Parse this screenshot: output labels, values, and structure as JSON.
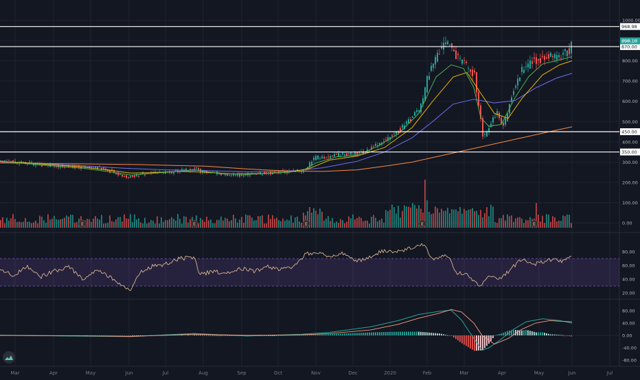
{
  "chart_data": {
    "type": "candlestick",
    "months": [
      "Mar",
      "Apr",
      "May",
      "Jun",
      "Jul",
      "Aug",
      "Sep",
      "Oct",
      "Nov",
      "Dec",
      "2020",
      "Feb",
      "Mar",
      "Apr",
      "May",
      "Jun",
      "Jul"
    ],
    "main_y_ticks": [
      1000,
      900,
      800,
      700,
      600,
      500,
      400,
      300,
      200,
      100,
      0
    ],
    "price_close_series": [
      [
        0,
        308
      ],
      [
        15,
        302
      ],
      [
        30,
        296
      ],
      [
        45,
        290
      ],
      [
        60,
        286
      ],
      [
        75,
        283
      ],
      [
        90,
        281
      ],
      [
        105,
        278
      ],
      [
        120,
        276
      ],
      [
        135,
        274
      ],
      [
        145,
        268
      ],
      [
        155,
        260
      ],
      [
        165,
        250
      ],
      [
        175,
        238
      ],
      [
        185,
        223
      ],
      [
        195,
        232
      ],
      [
        205,
        242
      ],
      [
        215,
        245
      ],
      [
        230,
        248
      ],
      [
        245,
        250
      ],
      [
        260,
        256
      ],
      [
        275,
        263
      ],
      [
        283,
        272
      ],
      [
        290,
        256
      ],
      [
        300,
        250
      ],
      [
        315,
        246
      ],
      [
        330,
        240
      ],
      [
        345,
        235
      ],
      [
        360,
        238
      ],
      [
        375,
        242
      ],
      [
        390,
        246
      ],
      [
        405,
        252
      ],
      [
        420,
        254
      ],
      [
        435,
        256
      ],
      [
        443,
        262
      ],
      [
        450,
        292
      ],
      [
        458,
        322
      ],
      [
        470,
        326
      ],
      [
        485,
        330
      ],
      [
        495,
        338
      ],
      [
        505,
        336
      ],
      [
        520,
        340
      ],
      [
        530,
        352
      ],
      [
        540,
        372
      ],
      [
        550,
        392
      ],
      [
        560,
        408
      ],
      [
        570,
        432
      ],
      [
        580,
        458
      ],
      [
        590,
        492
      ],
      [
        600,
        522
      ],
      [
        610,
        562
      ],
      [
        617,
        632
      ],
      [
        622,
        730
      ],
      [
        628,
        770
      ],
      [
        635,
        820
      ],
      [
        642,
        868
      ],
      [
        650,
        890
      ],
      [
        657,
        858
      ],
      [
        664,
        820
      ],
      [
        670,
        796
      ],
      [
        677,
        778
      ],
      [
        684,
        752
      ],
      [
        690,
        732
      ],
      [
        697,
        560
      ],
      [
        703,
        410
      ],
      [
        710,
        470
      ],
      [
        717,
        520
      ],
      [
        724,
        552
      ],
      [
        731,
        462
      ],
      [
        738,
        536
      ],
      [
        745,
        650
      ],
      [
        752,
        708
      ],
      [
        760,
        760
      ],
      [
        768,
        780
      ],
      [
        775,
        806
      ],
      [
        782,
        798
      ],
      [
        790,
        818
      ],
      [
        798,
        828
      ],
      [
        806,
        824
      ],
      [
        814,
        828
      ],
      [
        822,
        836
      ],
      [
        828,
        850
      ],
      [
        833,
        898
      ]
    ],
    "ma_fast_series": [
      [
        0,
        306
      ],
      [
        40,
        292
      ],
      [
        80,
        280
      ],
      [
        120,
        270
      ],
      [
        160,
        252
      ],
      [
        190,
        236
      ],
      [
        220,
        244
      ],
      [
        260,
        254
      ],
      [
        283,
        262
      ],
      [
        320,
        244
      ],
      [
        360,
        240
      ],
      [
        400,
        246
      ],
      [
        440,
        256
      ],
      [
        460,
        296
      ],
      [
        490,
        326
      ],
      [
        520,
        334
      ],
      [
        550,
        378
      ],
      [
        580,
        440
      ],
      [
        610,
        540
      ],
      [
        635,
        720
      ],
      [
        657,
        780
      ],
      [
        675,
        762
      ],
      [
        690,
        668
      ],
      [
        700,
        520
      ],
      [
        712,
        476
      ],
      [
        730,
        486
      ],
      [
        750,
        618
      ],
      [
        770,
        722
      ],
      [
        790,
        784
      ],
      [
        815,
        804
      ],
      [
        833,
        820
      ]
    ],
    "ma_mid_series": [
      [
        0,
        304
      ],
      [
        40,
        296
      ],
      [
        80,
        286
      ],
      [
        120,
        276
      ],
      [
        160,
        260
      ],
      [
        190,
        246
      ],
      [
        220,
        248
      ],
      [
        260,
        254
      ],
      [
        300,
        250
      ],
      [
        340,
        242
      ],
      [
        380,
        244
      ],
      [
        420,
        250
      ],
      [
        450,
        268
      ],
      [
        480,
        310
      ],
      [
        520,
        330
      ],
      [
        560,
        372
      ],
      [
        600,
        470
      ],
      [
        630,
        600
      ],
      [
        660,
        720
      ],
      [
        680,
        742
      ],
      [
        700,
        640
      ],
      [
        720,
        540
      ],
      [
        740,
        516
      ],
      [
        760,
        614
      ],
      [
        790,
        730
      ],
      [
        815,
        780
      ],
      [
        833,
        800
      ]
    ],
    "ma_slow_series": [
      [
        0,
        302
      ],
      [
        60,
        292
      ],
      [
        120,
        282
      ],
      [
        180,
        270
      ],
      [
        240,
        262
      ],
      [
        300,
        258
      ],
      [
        360,
        252
      ],
      [
        420,
        254
      ],
      [
        470,
        272
      ],
      [
        520,
        304
      ],
      [
        560,
        350
      ],
      [
        600,
        420
      ],
      [
        630,
        500
      ],
      [
        660,
        586
      ],
      [
        690,
        610
      ],
      [
        720,
        592
      ],
      [
        750,
        604
      ],
      [
        780,
        666
      ],
      [
        810,
        714
      ],
      [
        833,
        738
      ]
    ],
    "ma_long_series": [
      [
        0,
        296
      ],
      [
        100,
        292
      ],
      [
        200,
        288
      ],
      [
        300,
        280
      ],
      [
        360,
        266
      ],
      [
        420,
        256
      ],
      [
        470,
        254
      ],
      [
        520,
        262
      ],
      [
        560,
        280
      ],
      [
        600,
        300
      ],
      [
        640,
        330
      ],
      [
        680,
        360
      ],
      [
        720,
        390
      ],
      [
        760,
        420
      ],
      [
        800,
        450
      ],
      [
        833,
        474
      ]
    ],
    "volume_bars_count": 278,
    "earnings_markers": [
      "E",
      "E",
      "E",
      "E",
      "E",
      "E"
    ],
    "horizontal_levels": [
      {
        "value": 968.98,
        "label": "968.98"
      },
      {
        "value": 870.0,
        "label": "870.00"
      },
      {
        "value": 450.0,
        "label": "450.00"
      },
      {
        "value": 350.0,
        "label": "350.00"
      }
    ],
    "last_price": {
      "value": 898.1,
      "label": "898.10"
    },
    "rsi": {
      "y_ticks": [
        80,
        60,
        40,
        20
      ],
      "band": [
        30,
        70
      ],
      "series": [
        [
          0,
          55
        ],
        [
          20,
          46
        ],
        [
          40,
          58
        ],
        [
          60,
          44
        ],
        [
          80,
          52
        ],
        [
          100,
          58
        ],
        [
          120,
          40
        ],
        [
          140,
          54
        ],
        [
          160,
          44
        ],
        [
          175,
          33
        ],
        [
          190,
          24
        ],
        [
          205,
          52
        ],
        [
          220,
          58
        ],
        [
          240,
          62
        ],
        [
          262,
          70
        ],
        [
          283,
          72
        ],
        [
          290,
          46
        ],
        [
          310,
          52
        ],
        [
          330,
          48
        ],
        [
          350,
          56
        ],
        [
          370,
          52
        ],
        [
          390,
          58
        ],
        [
          410,
          54
        ],
        [
          430,
          60
        ],
        [
          445,
          76
        ],
        [
          460,
          80
        ],
        [
          480,
          74
        ],
        [
          500,
          78
        ],
        [
          520,
          66
        ],
        [
          540,
          74
        ],
        [
          560,
          82
        ],
        [
          580,
          80
        ],
        [
          600,
          86
        ],
        [
          617,
          90
        ],
        [
          630,
          70
        ],
        [
          650,
          76
        ],
        [
          665,
          50
        ],
        [
          680,
          46
        ],
        [
          700,
          30
        ],
        [
          712,
          44
        ],
        [
          730,
          42
        ],
        [
          745,
          56
        ],
        [
          760,
          70
        ],
        [
          780,
          62
        ],
        [
          800,
          68
        ],
        [
          820,
          66
        ],
        [
          833,
          74
        ]
      ]
    },
    "macd": {
      "y_ticks": [
        80,
        40,
        0,
        -40,
        -80
      ],
      "macd_series": [
        [
          0,
          1
        ],
        [
          100,
          -2
        ],
        [
          190,
          -4
        ],
        [
          260,
          4
        ],
        [
          283,
          6
        ],
        [
          360,
          -2
        ],
        [
          440,
          4
        ],
        [
          480,
          10
        ],
        [
          540,
          28
        ],
        [
          580,
          48
        ],
        [
          610,
          68
        ],
        [
          640,
          78
        ],
        [
          657,
          82
        ],
        [
          672,
          50
        ],
        [
          690,
          -10
        ],
        [
          702,
          -48
        ],
        [
          712,
          -40
        ],
        [
          730,
          -12
        ],
        [
          748,
          20
        ],
        [
          766,
          44
        ],
        [
          790,
          54
        ],
        [
          815,
          48
        ],
        [
          833,
          40
        ]
      ],
      "signal_series": [
        [
          0,
          0
        ],
        [
          100,
          -1
        ],
        [
          190,
          -3
        ],
        [
          260,
          2
        ],
        [
          283,
          4
        ],
        [
          360,
          0
        ],
        [
          440,
          2
        ],
        [
          480,
          6
        ],
        [
          540,
          18
        ],
        [
          580,
          36
        ],
        [
          610,
          56
        ],
        [
          640,
          72
        ],
        [
          657,
          84
        ],
        [
          672,
          76
        ],
        [
          690,
          40
        ],
        [
          702,
          0
        ],
        [
          720,
          -28
        ],
        [
          740,
          -10
        ],
        [
          760,
          20
        ],
        [
          780,
          40
        ],
        [
          800,
          48
        ],
        [
          833,
          44
        ]
      ]
    }
  }
}
